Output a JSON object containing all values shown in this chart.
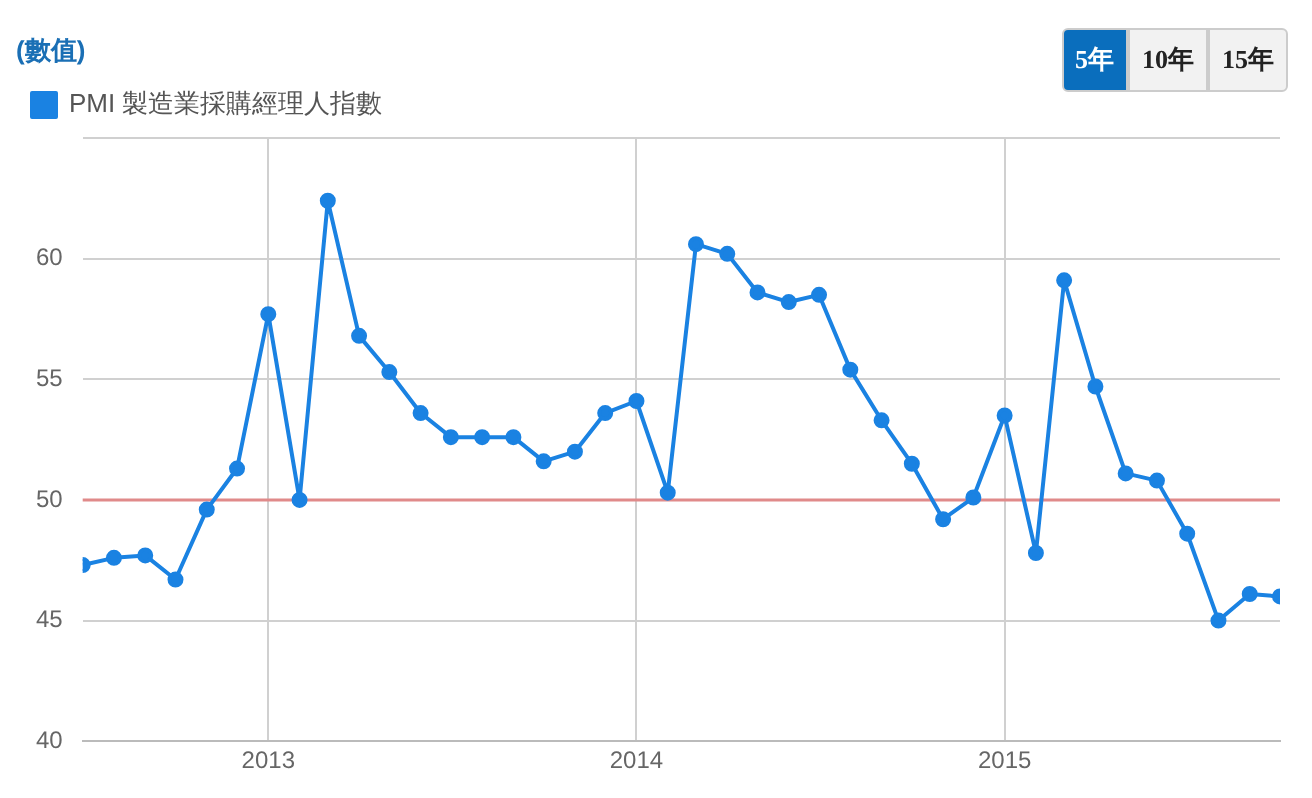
{
  "chart_data": {
    "type": "line",
    "ylabel": "(數值)",
    "legend": "top left",
    "grid": true,
    "marker": "circle",
    "line_style": "solid",
    "annotations": [
      "5年",
      "10年",
      "15年"
    ],
    "x": [
      "2012-07",
      "2012-08",
      "2012-09",
      "2012-10",
      "2012-11",
      "2012-12",
      "2013-01",
      "2013-02",
      "2013-03",
      "2013-04",
      "2013-05",
      "2013-06",
      "2013-07",
      "2013-08",
      "2013-09",
      "2013-10",
      "2013-11",
      "2013-12",
      "2014-01",
      "2014-02",
      "2014-03",
      "2014-04",
      "2014-05",
      "2014-06",
      "2014-07",
      "2014-08",
      "2014-09",
      "2014-10",
      "2014-11",
      "2014-12",
      "2015-01",
      "2015-02",
      "2015-03",
      "2015-04",
      "2015-05",
      "2015-06",
      "2015-07",
      "2015-08",
      "2015-09",
      "2015-10"
    ],
    "series": [
      {
        "name": "PMI 製造業採購經理人指數",
        "color": "#1a82e2",
        "values": [
          47.3,
          47.6,
          47.7,
          46.7,
          49.6,
          51.3,
          57.7,
          50.0,
          62.4,
          56.8,
          55.3,
          53.6,
          52.6,
          52.6,
          52.6,
          51.6,
          52.0,
          53.6,
          54.1,
          50.3,
          60.6,
          60.2,
          58.6,
          58.2,
          58.5,
          55.4,
          53.3,
          51.5,
          49.2,
          50.1,
          53.5,
          47.8,
          59.1,
          54.7,
          51.1,
          50.8,
          48.6,
          45.0,
          46.1,
          46.0
        ]
      }
    ],
    "xlim": [
      "2012-07",
      "2015-10"
    ],
    "xticks": [
      "2013",
      "2014",
      "2015"
    ],
    "ylim": [
      40,
      65
    ],
    "yticks": [
      40,
      45,
      50,
      55,
      60,
      {
        "value": 65,
        "label": null
      }
    ],
    "ref_lines": [
      {
        "axis": "y",
        "value": 50,
        "color": "#e08a8a"
      }
    ]
  }
}
